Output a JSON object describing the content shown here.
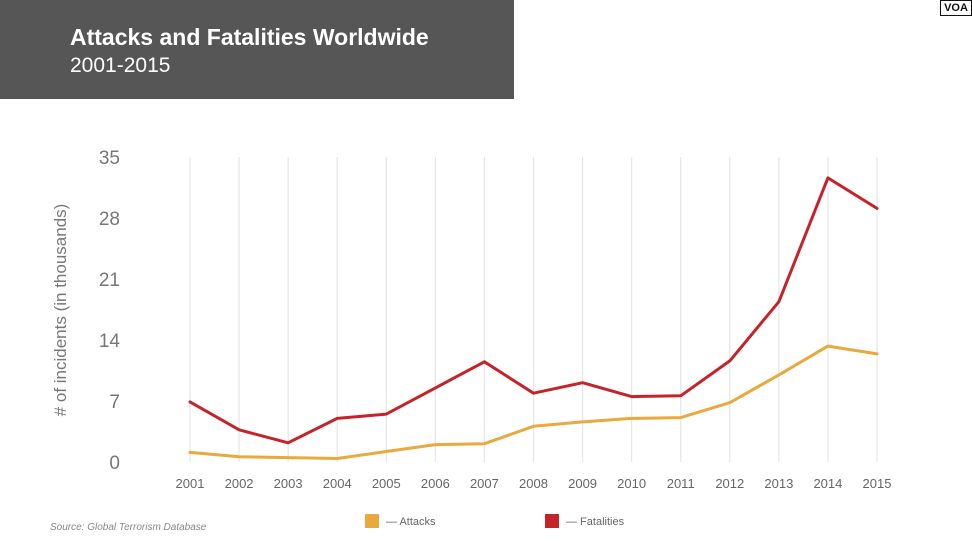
{
  "header": {
    "title": "Attacks and Fatalities Worldwide",
    "subtitle": "2001-2015",
    "logo_text": "VOA"
  },
  "footer": {
    "source": "Source: Global Terrorism Database"
  },
  "colors": {
    "header_bg": "#565656",
    "attacks": "#E8A93E",
    "fatalities": "#C4232A",
    "grid": "#E6E6E6",
    "axis_text": "#6F6F6F"
  },
  "chart_data": {
    "type": "line",
    "title": "Attacks and Fatalities Worldwide",
    "subtitle": "2001-2015",
    "xlabel": "",
    "ylabel": "# of incidents (in thousands)",
    "ylim": [
      0,
      35
    ],
    "yticks": [
      0,
      7,
      14,
      21,
      28,
      35
    ],
    "categories": [
      "2001",
      "2002",
      "2003",
      "2004",
      "2005",
      "2006",
      "2007",
      "2008",
      "2009",
      "2010",
      "2011",
      "2012",
      "2013",
      "2014",
      "2015"
    ],
    "grid": "vertical",
    "legend_position": "bottom",
    "series": [
      {
        "name": "— Attacks",
        "color": "#E8A93E",
        "values": [
          1.1,
          0.6,
          0.5,
          0.4,
          1.2,
          2.0,
          2.1,
          4.1,
          4.6,
          5.0,
          5.1,
          6.8,
          10.0,
          13.3,
          12.4
        ]
      },
      {
        "name": "— Fatalities",
        "color": "#C4232A",
        "values": [
          6.9,
          3.7,
          2.2,
          5.0,
          5.5,
          8.5,
          11.5,
          7.9,
          9.1,
          7.5,
          7.6,
          11.6,
          18.4,
          32.6,
          29.1
        ]
      }
    ]
  }
}
